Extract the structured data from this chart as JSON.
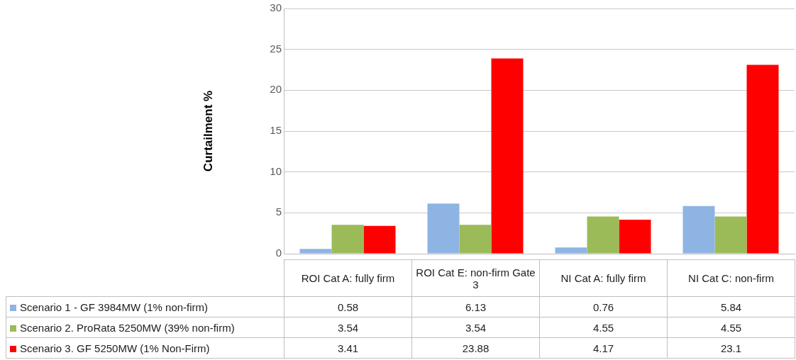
{
  "chart_data": {
    "type": "bar",
    "ylabel": "Curtailment %",
    "categories": [
      "ROI Cat A: fully firm",
      "ROI Cat E: non-firm Gate 3",
      "NI Cat A: fully firm",
      "NI Cat C: non-firm"
    ],
    "series": [
      {
        "name": "Scenario 1  - GF 3984MW (1% non-firm)",
        "color": "#8eb4e3",
        "values": [
          0.58,
          6.13,
          0.76,
          5.84
        ]
      },
      {
        "name": "Scenario 2. ProRata 5250MW (39% non-firm)",
        "color": "#9bbb59",
        "values": [
          3.54,
          3.54,
          4.55,
          4.55
        ]
      },
      {
        "name": "Scenario 3. GF 5250MW (1% Non-Firm)",
        "color": "#ff0000",
        "values": [
          3.41,
          23.88,
          4.17,
          23.1
        ]
      }
    ],
    "ylim": [
      0,
      30
    ],
    "yticks": [
      0,
      5,
      10,
      15,
      20,
      25,
      30
    ],
    "grid": "y",
    "legend": "bottom",
    "data_labels": true
  }
}
